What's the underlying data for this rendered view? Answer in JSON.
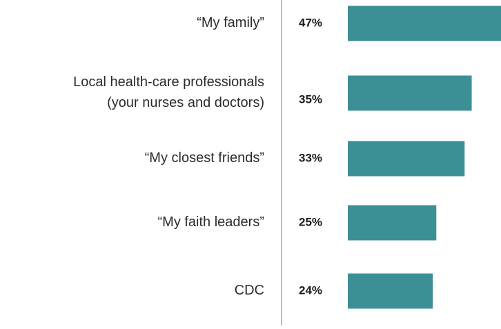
{
  "chart_data": {
    "type": "bar",
    "categories": [
      "“My family”",
      "Local health-care professionals\n(your nurses and doctors)",
      "“My closest friends”",
      "“My faith leaders”",
      "CDC"
    ],
    "values": [
      47,
      35,
      33,
      25,
      24
    ],
    "value_labels": [
      "47%",
      "35%",
      "33%",
      "25%",
      "24%"
    ],
    "color": "#3d8f96"
  }
}
